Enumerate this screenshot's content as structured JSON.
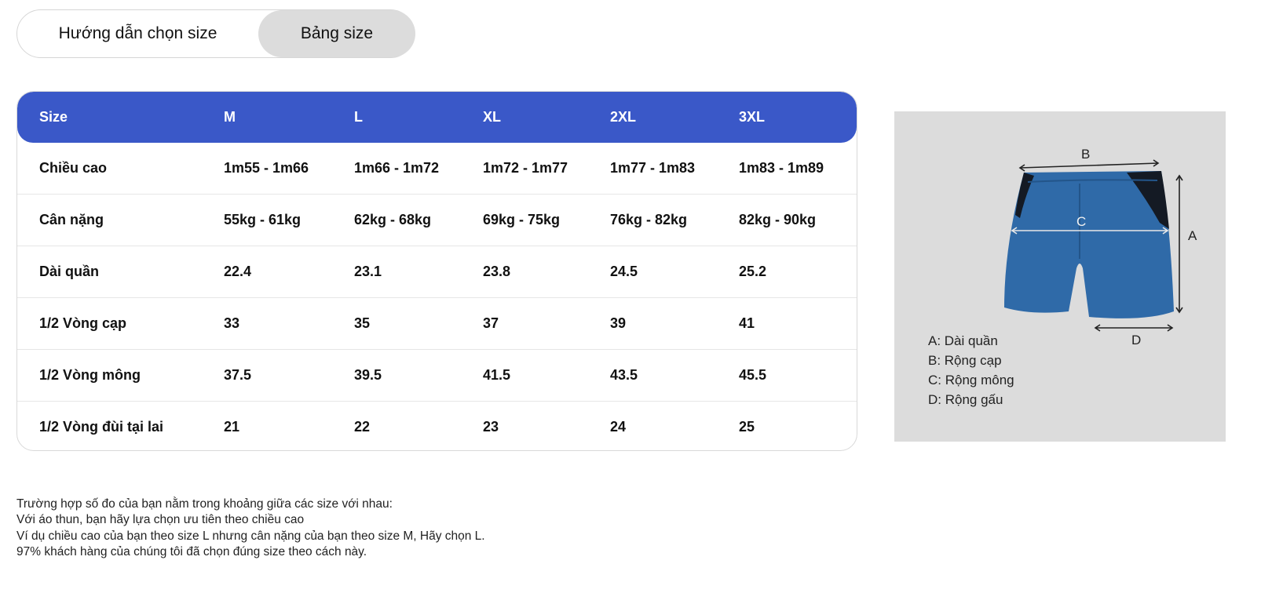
{
  "tabs": [
    {
      "label": "Hướng dẫn chọn size",
      "active": false
    },
    {
      "label": "Bảng size",
      "active": true
    }
  ],
  "size_table": {
    "header": [
      "Size",
      "M",
      "L",
      "XL",
      "2XL",
      "3XL"
    ],
    "rows": [
      [
        "Chiều cao",
        "1m55 - 1m66",
        "1m66 - 1m72",
        "1m72 - 1m77",
        "1m77 - 1m83",
        "1m83 - 1m89"
      ],
      [
        "Cân nặng",
        "55kg - 61kg",
        "62kg - 68kg",
        "69kg - 75kg",
        "76kg - 82kg",
        "82kg - 90kg"
      ],
      [
        "Dài quần",
        "22.4",
        "23.1",
        "23.8",
        "24.5",
        "25.2"
      ],
      [
        "1/2 Vòng cạp",
        "33",
        "35",
        "37",
        "39",
        "41"
      ],
      [
        "1/2 Vòng mông",
        "37.5",
        "39.5",
        "41.5",
        "43.5",
        "45.5"
      ],
      [
        "1/2 Vòng đùi tại lai",
        "21",
        "22",
        "23",
        "24",
        "25"
      ]
    ]
  },
  "diagram": {
    "labels": {
      "a": "A",
      "b": "B",
      "c": "C",
      "d": "D"
    },
    "legend": [
      "A: Dài quần",
      "B: Rộng cạp",
      "C: Rộng mông",
      "D: Rộng gấu"
    ]
  },
  "notes": [
    "Trường hợp số đo của bạn nằm trong khoảng giữa các size với nhau:",
    "Với áo thun, bạn hãy lựa chọn ưu tiên theo chiều cao",
    "Ví dụ chiều cao của bạn theo size L nhưng cân nặng của bạn theo size M, Hãy chọn L.",
    "97% khách hàng của chúng tôi đã chọn đúng size theo cách này."
  ],
  "colors": {
    "header_bg": "#3a58c8",
    "shorts_blue": "#2f6aa8",
    "shorts_panel": "#141a24"
  }
}
